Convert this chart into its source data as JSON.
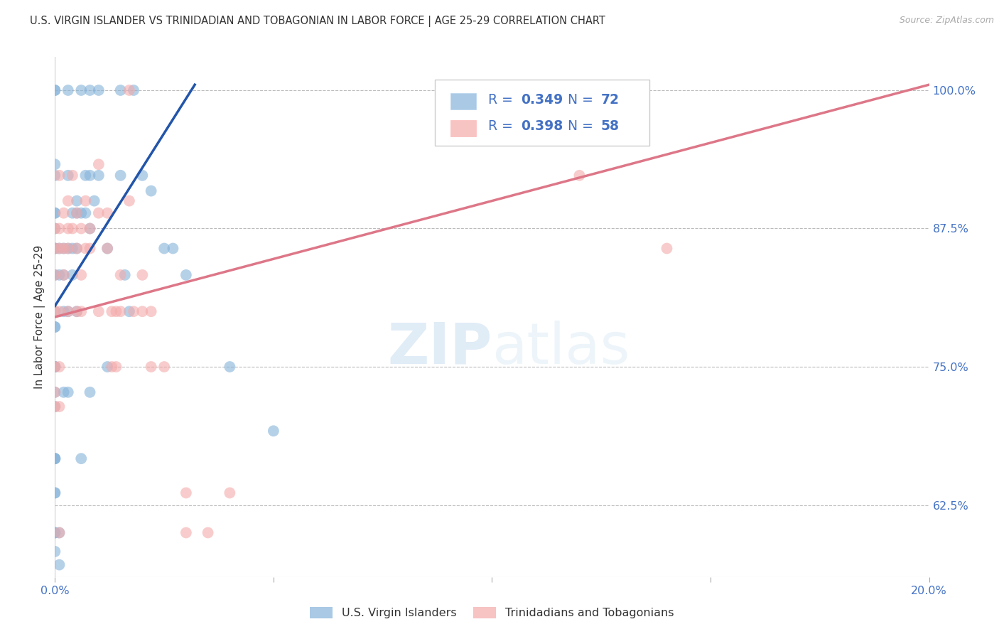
{
  "title": "U.S. VIRGIN ISLANDER VS TRINIDADIAN AND TOBAGONIAN IN LABOR FORCE | AGE 25-29 CORRELATION CHART",
  "source_text": "Source: ZipAtlas.com",
  "ylabel": "In Labor Force | Age 25-29",
  "blue_R": 0.349,
  "blue_N": 72,
  "pink_R": 0.398,
  "pink_N": 58,
  "legend_blue": "U.S. Virgin Islanders",
  "legend_pink": "Trinidadians and Tobagonians",
  "watermark_zip": "ZIP",
  "watermark_atlas": "atlas",
  "xlim": [
    0.0,
    0.2
  ],
  "ylim": [
    0.56,
    1.03
  ],
  "yticks": [
    0.625,
    0.75,
    0.875,
    1.0
  ],
  "ytick_labels": [
    "62.5%",
    "75.0%",
    "87.5%",
    "100.0%"
  ],
  "xticks": [
    0.0,
    0.05,
    0.1,
    0.15,
    0.2
  ],
  "xtick_labels": [
    "0.0%",
    "",
    "",
    "",
    "20.0%"
  ],
  "title_color": "#333333",
  "axis_color": "#4472C4",
  "blue_color": "#85B3D9",
  "pink_color": "#F4AAAA",
  "blue_line_color": "#2255AA",
  "pink_line_color": "#DD7788",
  "grid_color": "#BBBBBB",
  "blue_scatter": [
    [
      0.0,
      1.0
    ],
    [
      0.0,
      1.0
    ],
    [
      0.0,
      0.933
    ],
    [
      0.0,
      0.923
    ],
    [
      0.0,
      0.889
    ],
    [
      0.0,
      0.889
    ],
    [
      0.0,
      0.875
    ],
    [
      0.0,
      0.857
    ],
    [
      0.0,
      0.857
    ],
    [
      0.0,
      0.833
    ],
    [
      0.0,
      0.8
    ],
    [
      0.0,
      0.786
    ],
    [
      0.0,
      0.786
    ],
    [
      0.0,
      0.75
    ],
    [
      0.0,
      0.75
    ],
    [
      0.0,
      0.75
    ],
    [
      0.0,
      0.727
    ],
    [
      0.0,
      0.714
    ],
    [
      0.0,
      0.667
    ],
    [
      0.0,
      0.667
    ],
    [
      0.0,
      0.667
    ],
    [
      0.0,
      0.636
    ],
    [
      0.0,
      0.636
    ],
    [
      0.0,
      0.6
    ],
    [
      0.0,
      0.6
    ],
    [
      0.0,
      0.583
    ],
    [
      0.001,
      0.857
    ],
    [
      0.001,
      0.833
    ],
    [
      0.002,
      0.857
    ],
    [
      0.002,
      0.833
    ],
    [
      0.002,
      0.8
    ],
    [
      0.002,
      0.727
    ],
    [
      0.003,
      1.0
    ],
    [
      0.003,
      0.923
    ],
    [
      0.003,
      0.857
    ],
    [
      0.003,
      0.8
    ],
    [
      0.003,
      0.727
    ],
    [
      0.004,
      0.889
    ],
    [
      0.004,
      0.857
    ],
    [
      0.004,
      0.833
    ],
    [
      0.005,
      0.9
    ],
    [
      0.005,
      0.889
    ],
    [
      0.005,
      0.857
    ],
    [
      0.005,
      0.8
    ],
    [
      0.006,
      1.0
    ],
    [
      0.006,
      0.889
    ],
    [
      0.006,
      0.667
    ],
    [
      0.007,
      0.923
    ],
    [
      0.007,
      0.889
    ],
    [
      0.008,
      1.0
    ],
    [
      0.008,
      0.923
    ],
    [
      0.008,
      0.875
    ],
    [
      0.008,
      0.727
    ],
    [
      0.009,
      0.9
    ],
    [
      0.01,
      1.0
    ],
    [
      0.01,
      0.923
    ],
    [
      0.012,
      0.857
    ],
    [
      0.012,
      0.75
    ],
    [
      0.015,
      1.0
    ],
    [
      0.015,
      0.923
    ],
    [
      0.016,
      0.833
    ],
    [
      0.017,
      0.8
    ],
    [
      0.018,
      1.0
    ],
    [
      0.02,
      0.923
    ],
    [
      0.022,
      0.909
    ],
    [
      0.025,
      0.857
    ],
    [
      0.027,
      0.857
    ],
    [
      0.03,
      0.833
    ],
    [
      0.04,
      0.75
    ],
    [
      0.05,
      0.692
    ],
    [
      0.001,
      0.571
    ],
    [
      0.001,
      0.6
    ]
  ],
  "pink_scatter": [
    [
      0.0,
      0.875
    ],
    [
      0.0,
      0.857
    ],
    [
      0.0,
      0.833
    ],
    [
      0.0,
      0.8
    ],
    [
      0.0,
      0.75
    ],
    [
      0.0,
      0.727
    ],
    [
      0.0,
      0.714
    ],
    [
      0.001,
      0.923
    ],
    [
      0.001,
      0.875
    ],
    [
      0.001,
      0.857
    ],
    [
      0.001,
      0.8
    ],
    [
      0.001,
      0.75
    ],
    [
      0.001,
      0.714
    ],
    [
      0.001,
      0.6
    ],
    [
      0.002,
      0.889
    ],
    [
      0.002,
      0.857
    ],
    [
      0.002,
      0.833
    ],
    [
      0.003,
      0.9
    ],
    [
      0.003,
      0.875
    ],
    [
      0.003,
      0.857
    ],
    [
      0.003,
      0.8
    ],
    [
      0.004,
      0.923
    ],
    [
      0.004,
      0.875
    ],
    [
      0.005,
      0.889
    ],
    [
      0.005,
      0.857
    ],
    [
      0.005,
      0.8
    ],
    [
      0.006,
      0.875
    ],
    [
      0.006,
      0.833
    ],
    [
      0.006,
      0.8
    ],
    [
      0.007,
      0.9
    ],
    [
      0.007,
      0.857
    ],
    [
      0.008,
      0.875
    ],
    [
      0.008,
      0.857
    ],
    [
      0.01,
      0.933
    ],
    [
      0.01,
      0.889
    ],
    [
      0.01,
      0.8
    ],
    [
      0.012,
      0.889
    ],
    [
      0.012,
      0.857
    ],
    [
      0.013,
      0.8
    ],
    [
      0.013,
      0.75
    ],
    [
      0.014,
      0.8
    ],
    [
      0.014,
      0.75
    ],
    [
      0.015,
      0.833
    ],
    [
      0.015,
      0.8
    ],
    [
      0.017,
      1.0
    ],
    [
      0.017,
      0.9
    ],
    [
      0.018,
      0.8
    ],
    [
      0.02,
      0.833
    ],
    [
      0.02,
      0.8
    ],
    [
      0.022,
      0.8
    ],
    [
      0.022,
      0.75
    ],
    [
      0.025,
      0.75
    ],
    [
      0.03,
      0.636
    ],
    [
      0.03,
      0.6
    ],
    [
      0.035,
      0.6
    ],
    [
      0.04,
      0.636
    ],
    [
      0.12,
      0.923
    ],
    [
      0.14,
      0.857
    ]
  ],
  "blue_line": {
    "x0": 0.0,
    "y0": 0.805,
    "x1": 0.032,
    "y1": 1.005
  },
  "pink_line": {
    "x0": 0.0,
    "y0": 0.795,
    "x1": 0.2,
    "y1": 1.005
  }
}
